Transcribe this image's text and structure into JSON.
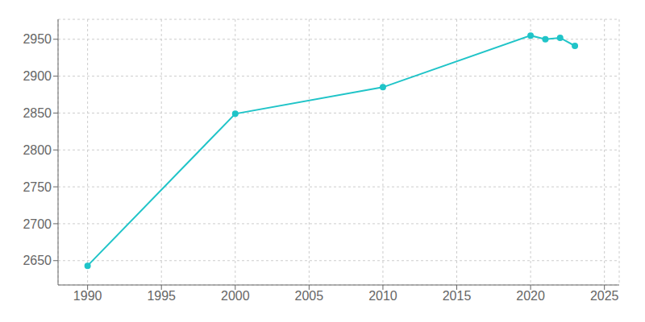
{
  "chart_data": {
    "type": "line",
    "x": [
      1990,
      2000,
      2010,
      2020,
      2021,
      2022,
      2023
    ],
    "values": [
      2643,
      2849,
      2885,
      2955,
      2950,
      2952,
      2941
    ],
    "color": "#20c4c8",
    "marker": "circle",
    "xlim": [
      1988,
      2026
    ],
    "ylim": [
      2617,
      2977
    ],
    "xticks": [
      1990,
      1995,
      2000,
      2005,
      2010,
      2015,
      2020,
      2025
    ],
    "yticks": [
      2650,
      2700,
      2750,
      2800,
      2850,
      2900,
      2950
    ],
    "grid": true
  }
}
